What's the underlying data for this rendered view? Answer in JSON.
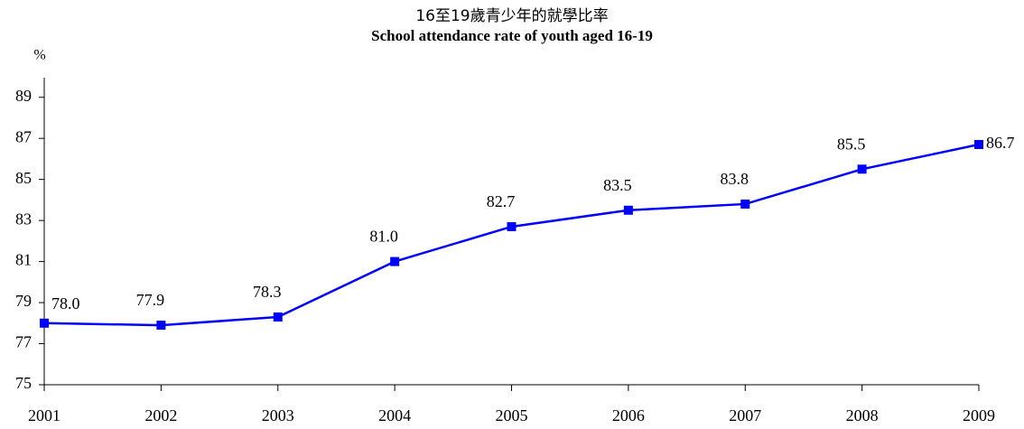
{
  "chart_data": {
    "type": "line",
    "title": "16至19歲青少年的就學比率",
    "subtitle": "School attendance rate of youth aged 16-19",
    "y_label": "%",
    "categories": [
      "2001",
      "2002",
      "2003",
      "2004",
      "2005",
      "2006",
      "2007",
      "2008",
      "2009"
    ],
    "series": [
      {
        "name": "School attendance rate",
        "color": "#0000ff",
        "values": [
          78.0,
          77.9,
          78.3,
          81.0,
          82.7,
          83.5,
          83.8,
          85.5,
          86.7
        ],
        "value_labels": [
          "78.0",
          "77.9",
          "78.3",
          "81.0",
          "82.7",
          "83.5",
          "83.8",
          "85.5",
          "86.7"
        ]
      }
    ],
    "ylim": [
      75,
      90
    ],
    "yticks": [
      75,
      77,
      79,
      81,
      83,
      85,
      87,
      89
    ]
  }
}
